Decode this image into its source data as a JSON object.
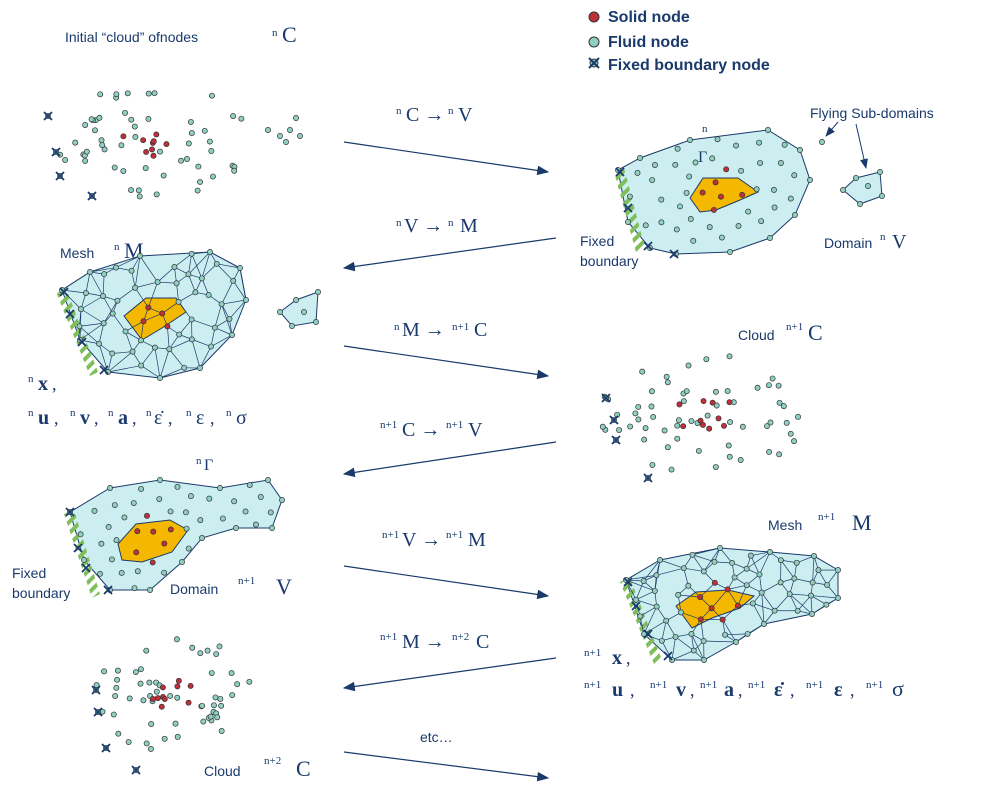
{
  "legend": {
    "solid": "Solid node",
    "fluid": "Fluid node",
    "fixed": "Fixed boundary node"
  },
  "labels": {
    "initial_cloud": "Initial “cloud” ofnodes",
    "flying": "Flying Sub-domains",
    "fixed_boundary_1": "Fixed",
    "fixed_boundary_1b": "boundary",
    "domain_nV": "Domain",
    "mesh_nM": "Mesh",
    "cloud_n1C": "Cloud",
    "domain_n1V": "Domain",
    "fixed_boundary_2": "Fixed",
    "fixed_boundary_2b": "boundary",
    "mesh_n1M": "Mesh",
    "cloud_n2C": "Cloud",
    "etc": "etc…"
  },
  "colors": {
    "solid": "#c0303a",
    "fluid": "#8fd0c4",
    "fixed": "#1a3a6b",
    "domain_fill": "#cdeef0",
    "solid_region": "#f5b800",
    "hatch": "#7fbf5a",
    "ink": "#1a3a6b"
  }
}
